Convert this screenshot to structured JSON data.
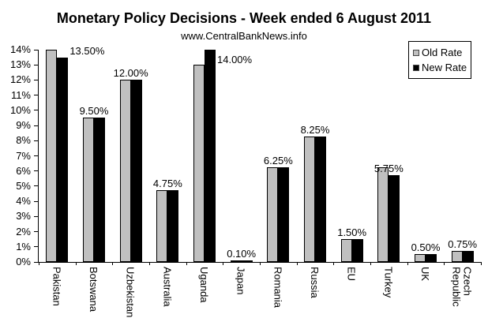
{
  "title": "Monetary Policy Decisions - Week ended 6 August 2011",
  "subtitle": "www.CentralBankNews.info",
  "legend": {
    "items": [
      {
        "label": "Old Rate",
        "color": "#C0C0C0"
      },
      {
        "label": "New Rate",
        "color": "#000000"
      }
    ]
  },
  "colors": {
    "old_rate": "#C0C0C0",
    "new_rate": "#000000",
    "axis": "#000000",
    "background": "#FFFFFF"
  },
  "chart_data": {
    "type": "bar",
    "categories": [
      "Pakistan",
      "Botswana",
      "Uzbekistan",
      "Australia",
      "Uganda",
      "Japan",
      "Romania",
      "Russia",
      "EU",
      "Turkey",
      "UK",
      "Czech Republic"
    ],
    "series": [
      {
        "name": "Old Rate",
        "color": "#C0C0C0",
        "values": [
          14.0,
          9.5,
          12.0,
          4.75,
          13.0,
          0.1,
          6.25,
          8.25,
          1.5,
          6.25,
          0.5,
          0.75
        ]
      },
      {
        "name": "New Rate",
        "color": "#000000",
        "values": [
          13.5,
          9.5,
          12.0,
          4.75,
          14.0,
          0.1,
          6.25,
          8.25,
          1.5,
          5.75,
          0.5,
          0.75
        ]
      }
    ],
    "data_labels": [
      "13.50%",
      "9.50%",
      "12.00%",
      "4.75%",
      "14.00%",
      "0.10%",
      "6.25%",
      "8.25%",
      "1.50%",
      "5.75%",
      "0.50%",
      "0.75%"
    ],
    "title": "Monetary Policy Decisions - Week ended 6 August 2011",
    "xlabel": "",
    "ylabel": "",
    "ylim": [
      0,
      14
    ],
    "ytick_step": 1,
    "ytick_labels_top_to_bottom": [
      "14%",
      "13%",
      "12%",
      "11%",
      "10%",
      "9%",
      "8%",
      "7%",
      "6%",
      "5%",
      "4%",
      "3%",
      "2%",
      "1%",
      "0%"
    ],
    "grid": false,
    "legend_position": "top-right"
  }
}
